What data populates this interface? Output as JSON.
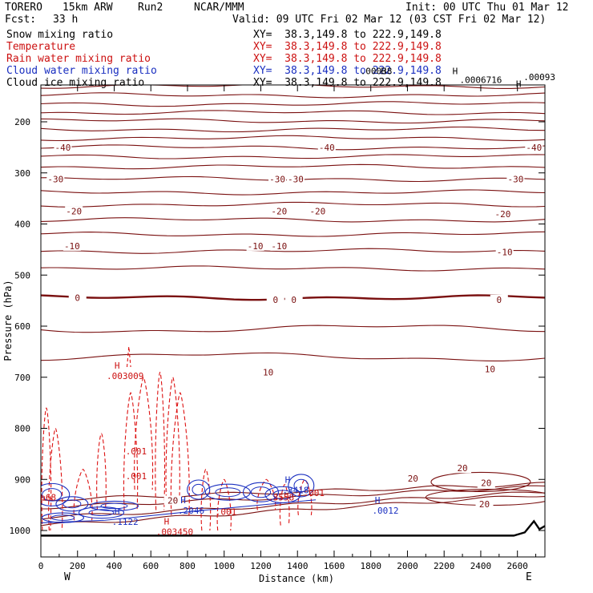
{
  "header": {
    "model": "TORERO",
    "resolution": "15km ARW",
    "run": "Run2",
    "org": "NCAR/MMM",
    "init": "Init: 00 UTC Thu 01 Mar 12",
    "fcst_label": "Fcst:",
    "fcst_value": "33 h",
    "valid": "Valid: 09 UTC Fri 02 Mar 12 (03 CST Fri 02 Mar 12)"
  },
  "fields": [
    {
      "name": "Snow mixing ratio",
      "xy": "XY=  38.3,149.8 to 222.9,149.8",
      "color": "#000000"
    },
    {
      "name": "Temperature",
      "xy": "XY=  38.3,149.8 to 222.9,149.8",
      "color": "#cc1111"
    },
    {
      "name": "Rain water mixing ratio",
      "xy": "XY=  38.3,149.8 to 222.9,149.8",
      "color": "#cc1111"
    },
    {
      "name": "Cloud water mixing ratio",
      "xy": "XY=  38.3,149.8 to 222.9,149.8",
      "color": "#1a2fc0"
    },
    {
      "name": "Cloud ice mixing ratio",
      "xy": "XY=  38.3,149.8 to 222.9,149.8",
      "color": "#000000"
    }
  ],
  "chart_data": {
    "type": "line",
    "xlabel": "Distance (km)",
    "ylabel": "Pressure (hPa)",
    "xlim": [
      0,
      2750
    ],
    "ylim": [
      1050,
      100
    ],
    "x_ticks": [
      "0",
      "200",
      "400",
      "600",
      "800",
      "1000",
      "1200",
      "1400",
      "1600",
      "1800",
      "2000",
      "2200",
      "2400",
      "2600"
    ],
    "y_ticks": [
      "200",
      "300",
      "400",
      "500",
      "600",
      "700",
      "800",
      "900",
      "1000"
    ],
    "left_end_label": "W",
    "right_end_label": "E",
    "isotherm_pressures": [
      112,
      130,
      148,
      165,
      182,
      198,
      215,
      232,
      250,
      268,
      288,
      312,
      338,
      362,
      392,
      420,
      453,
      487,
      544,
      605,
      660
    ],
    "isotherm_labels": [
      {
        "text": "-40",
        "x": 120,
        "p": 250
      },
      {
        "text": "-40",
        "x": 1560,
        "p": 250
      },
      {
        "text": "-40",
        "x": 2690,
        "p": 250
      },
      {
        "text": "-30",
        "x": 80,
        "p": 312
      },
      {
        "text": "-30",
        "x": 1290,
        "p": 312
      },
      {
        "text": "-30",
        "x": 1390,
        "p": 312
      },
      {
        "text": "-30",
        "x": 2590,
        "p": 312
      },
      {
        "text": "-20",
        "x": 180,
        "p": 375
      },
      {
        "text": "-20",
        "x": 1300,
        "p": 375
      },
      {
        "text": "-20",
        "x": 1510,
        "p": 375
      },
      {
        "text": "-20",
        "x": 2520,
        "p": 380
      },
      {
        "text": "-10",
        "x": 170,
        "p": 443
      },
      {
        "text": "-10",
        "x": 1170,
        "p": 443
      },
      {
        "text": "-10",
        "x": 1300,
        "p": 443
      },
      {
        "text": "-10",
        "x": 2530,
        "p": 455
      },
      {
        "text": "0",
        "x": 200,
        "p": 544
      },
      {
        "text": "0",
        "x": 1280,
        "p": 548
      },
      {
        "text": "0",
        "x": 1380,
        "p": 548
      },
      {
        "text": "0",
        "x": 2500,
        "p": 548
      },
      {
        "text": "10",
        "x": 1240,
        "p": 690
      },
      {
        "text": "10",
        "x": 2450,
        "p": 684
      },
      {
        "text": "20",
        "x": 2300,
        "p": 878
      },
      {
        "text": "20",
        "x": 2030,
        "p": 898
      },
      {
        "text": "20",
        "x": 2430,
        "p": 907
      },
      {
        "text": "20",
        "x": 2420,
        "p": 948
      },
      {
        "text": "20",
        "x": 720,
        "p": 941
      }
    ],
    "extrema_labels": [
      {
        "letter": "H",
        "value": ".003009",
        "x": 460,
        "p": 686,
        "color": "#cc1111"
      },
      {
        "letter": "H",
        "value": ".003450",
        "x": 730,
        "p": 991,
        "color": "#cc1111"
      },
      {
        "letter": "H",
        "value": ".0012",
        "x": 1880,
        "p": 950,
        "color": "#1a2fc0"
      },
      {
        "letter": "H",
        "value": ".1122",
        "x": 460,
        "p": 972,
        "color": "#1a2fc0"
      },
      {
        "letter": "H",
        "value": ".2046",
        "x": 820,
        "p": 950,
        "color": "#1a2fc0"
      },
      {
        "letter": "H",
        "value": ".3418",
        "x": 1390,
        "p": 910,
        "color": "#1a2fc0"
      },
      {
        "letter": "H",
        "value": "",
        "x": 2650,
        "p": 135,
        "color": "#000000"
      }
    ],
    "contour_value_labels": [
      {
        "text": ".001",
        "x": 520,
        "p": 845,
        "color": "#cc1111"
      },
      {
        "text": ".001",
        "x": 520,
        "p": 893,
        "color": "#cc1111"
      },
      {
        "text": ".001",
        "x": 1010,
        "p": 963,
        "color": "#cc1111"
      },
      {
        "text": ".001",
        "x": 1490,
        "p": 926,
        "color": "#cc1111"
      },
      {
        "text": ".3558",
        "x": 1310,
        "p": 935,
        "color": "#cc1111"
      },
      {
        "text": ".0006716",
        "x": 2400,
        "p": 118,
        "color": "#000000"
      },
      {
        "text": ".00093",
        "x": 2720,
        "p": 112,
        "color": "#000000"
      },
      {
        "text": ".00038",
        "x": 1830,
        "p": 100,
        "color": "#000000"
      },
      {
        "text": "a68",
        "x": 40,
        "p": 935,
        "color": "#cc1111"
      },
      {
        "text": "H",
        "x": 1870,
        "p": 100,
        "color": "#000000"
      },
      {
        "text": "H",
        "x": 2260,
        "p": 100,
        "color": "#000000"
      }
    ],
    "terrain_pressure": 1010,
    "notes": "Vertical cross section: Snow/rain/cloud water/cloud ice mixing ratio and temperature"
  }
}
